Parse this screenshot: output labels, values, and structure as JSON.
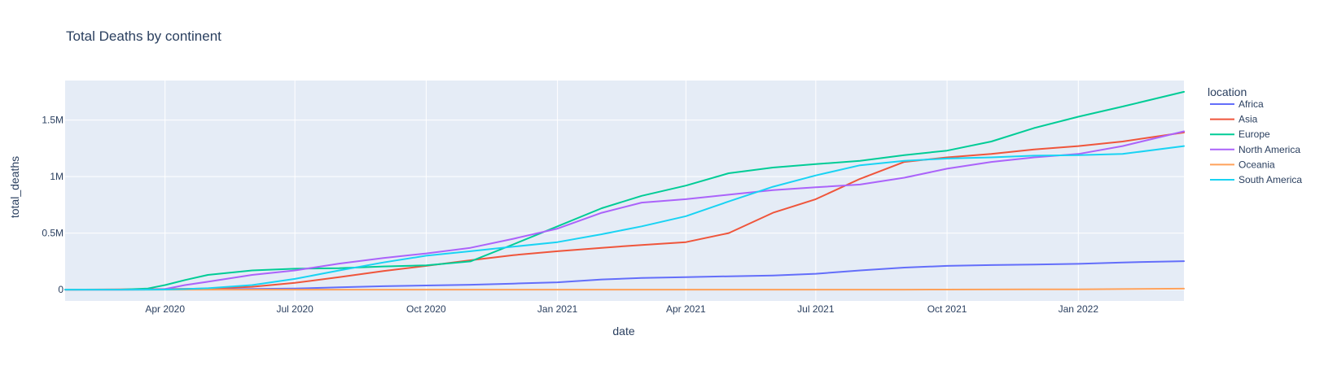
{
  "chart_data": {
    "type": "line",
    "title": "Total Deaths by continent",
    "xlabel": "date",
    "ylabel": "total_deaths",
    "xlim": [
      "2020-01-22",
      "2022-03-16"
    ],
    "ylim": [
      -100000,
      1850000
    ],
    "x_ticks": [
      {
        "date": "2020-04-01",
        "label": "Apr 2020"
      },
      {
        "date": "2020-07-01",
        "label": "Jul 2020"
      },
      {
        "date": "2020-10-01",
        "label": "Oct 2020"
      },
      {
        "date": "2021-01-01",
        "label": "Jan 2021"
      },
      {
        "date": "2021-04-01",
        "label": "Apr 2021"
      },
      {
        "date": "2021-07-01",
        "label": "Jul 2021"
      },
      {
        "date": "2021-10-01",
        "label": "Oct 2021"
      },
      {
        "date": "2022-01-01",
        "label": "Jan 2022"
      }
    ],
    "y_ticks": [
      {
        "value": 0,
        "label": "0"
      },
      {
        "value": 500000,
        "label": "0.5M"
      },
      {
        "value": 1000000,
        "label": "1M"
      },
      {
        "value": 1500000,
        "label": "1.5M"
      }
    ],
    "grid": true,
    "legend": {
      "title": "location",
      "placement": "right"
    },
    "x": [
      "2020-01-22",
      "2020-03-01",
      "2020-03-20",
      "2020-04-01",
      "2020-04-15",
      "2020-05-01",
      "2020-06-01",
      "2020-07-01",
      "2020-08-01",
      "2020-09-01",
      "2020-10-01",
      "2020-11-01",
      "2020-12-01",
      "2021-01-01",
      "2021-02-01",
      "2021-03-01",
      "2021-04-01",
      "2021-05-01",
      "2021-06-01",
      "2021-07-01",
      "2021-08-01",
      "2021-09-01",
      "2021-10-01",
      "2021-11-01",
      "2021-12-01",
      "2022-01-01",
      "2022-02-01",
      "2022-03-16"
    ],
    "series": [
      {
        "name": "Africa",
        "color": "#636efa",
        "values": [
          0,
          0,
          1000,
          2000,
          3000,
          4000,
          6000,
          10000,
          20000,
          30000,
          37000,
          43000,
          53000,
          65000,
          90000,
          103000,
          110000,
          118000,
          125000,
          140000,
          170000,
          195000,
          210000,
          217000,
          222000,
          228000,
          240000,
          252000
        ]
      },
      {
        "name": "Asia",
        "color": "#ef553b",
        "values": [
          0,
          3000,
          4000,
          5000,
          7000,
          10000,
          25000,
          60000,
          110000,
          165000,
          210000,
          260000,
          305000,
          340000,
          370000,
          395000,
          420000,
          500000,
          680000,
          800000,
          980000,
          1130000,
          1170000,
          1200000,
          1240000,
          1270000,
          1310000,
          1390000
        ]
      },
      {
        "name": "Europe",
        "color": "#00cc96",
        "values": [
          0,
          1000,
          10000,
          40000,
          85000,
          130000,
          170000,
          185000,
          190000,
          205000,
          215000,
          250000,
          400000,
          560000,
          720000,
          830000,
          920000,
          1030000,
          1080000,
          1110000,
          1140000,
          1190000,
          1230000,
          1310000,
          1430000,
          1530000,
          1620000,
          1750000
        ]
      },
      {
        "name": "North America",
        "color": "#ab63fa",
        "values": [
          0,
          0,
          1000,
          5000,
          40000,
          70000,
          130000,
          170000,
          230000,
          280000,
          320000,
          370000,
          450000,
          540000,
          680000,
          770000,
          800000,
          840000,
          880000,
          905000,
          930000,
          990000,
          1070000,
          1130000,
          1170000,
          1200000,
          1270000,
          1400000
        ]
      },
      {
        "name": "Oceania",
        "color": "#ffa15a",
        "values": [
          0,
          0,
          0,
          0,
          0,
          0,
          0,
          0,
          0,
          0,
          0,
          0,
          0,
          0,
          0,
          0,
          0,
          0,
          0,
          0,
          0,
          0,
          1000,
          1500,
          2000,
          3000,
          5000,
          9000
        ]
      },
      {
        "name": "South America",
        "color": "#19d3f3",
        "values": [
          0,
          0,
          0,
          1000,
          5000,
          12000,
          40000,
          95000,
          170000,
          240000,
          300000,
          340000,
          380000,
          420000,
          490000,
          560000,
          650000,
          780000,
          910000,
          1010000,
          1100000,
          1140000,
          1160000,
          1170000,
          1185000,
          1190000,
          1200000,
          1270000
        ]
      }
    ]
  }
}
